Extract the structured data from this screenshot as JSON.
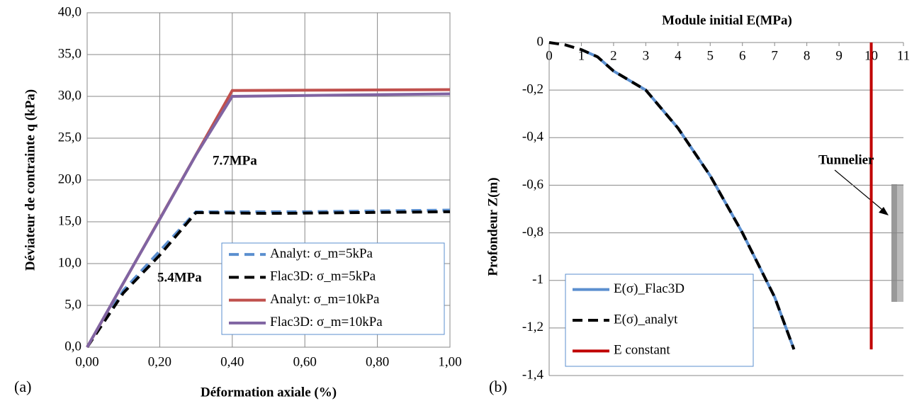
{
  "chart_data": [
    {
      "type": "line",
      "panel_label": "(a)",
      "x_label": "Déformation axiale (%)",
      "y_label": "Déviateur de contrainte q (kPa)",
      "xlim": [
        0,
        1
      ],
      "ylim": [
        0,
        40
      ],
      "grid": "both",
      "xaxis_position": "bottom",
      "legend": "bottom-right",
      "xticks": [
        {
          "value": 0,
          "label": "0,00"
        },
        {
          "value": 0.2,
          "label": "0,20"
        },
        {
          "value": 0.4,
          "label": "0,40"
        },
        {
          "value": 0.6,
          "label": "0,60"
        },
        {
          "value": 0.8,
          "label": "0,80"
        },
        {
          "value": 1,
          "label": "1,00"
        }
      ],
      "yticks": [
        {
          "value": 0,
          "label": "0,0"
        },
        {
          "value": 5,
          "label": "5,0"
        },
        {
          "value": 10,
          "label": "10,0"
        },
        {
          "value": 15,
          "label": "15,0"
        },
        {
          "value": 20,
          "label": "20,0"
        },
        {
          "value": 25,
          "label": "25,0"
        },
        {
          "value": 30,
          "label": "30,0"
        },
        {
          "value": 35,
          "label": "35,0"
        },
        {
          "value": 40,
          "label": "40,0"
        }
      ],
      "series": [
        {
          "name": "Analyt: σ_m=5kPa",
          "color": "#5b8fcf",
          "dash": true,
          "x": [
            0,
            0.1,
            0.3,
            0.6,
            1
          ],
          "values": [
            0,
            6.8,
            16.2,
            16.2,
            16.4
          ]
        },
        {
          "name": "Flac3D: σ_m=5kPa",
          "color": "#000000",
          "dash": true,
          "x": [
            0,
            0.1,
            0.2,
            0.3,
            0.5,
            1
          ],
          "values": [
            0,
            6.5,
            11,
            16.1,
            16,
            16.2
          ]
        },
        {
          "name": "Analyt: σ_m=10kPa",
          "color": "#c0504d",
          "dash": false,
          "x": [
            0,
            0.4,
            1
          ],
          "values": [
            0,
            30.7,
            30.8
          ]
        },
        {
          "name": "Flac3D: σ_m=10kPa",
          "color": "#8064a2",
          "dash": false,
          "x": [
            0,
            0.1,
            0.2,
            0.3,
            0.4,
            1
          ],
          "values": [
            0,
            7.7,
            15.3,
            23,
            30,
            30.3
          ]
        }
      ],
      "annotations": [
        "7.7MPa",
        "5.4MPa"
      ]
    },
    {
      "type": "line",
      "panel_label": "(b)",
      "title": "Module initial E(MPa)",
      "y_label": "Profondeur  Z(m)",
      "xlim": [
        0,
        11
      ],
      "ylim": [
        -1.4,
        0
      ],
      "grid": "y",
      "xaxis_position": "top",
      "legend": "bottom-left",
      "xticks": [
        0,
        1,
        2,
        3,
        4,
        5,
        6,
        7,
        8,
        9,
        10,
        11
      ],
      "yticks": [
        {
          "value": 0,
          "label": "0"
        },
        {
          "value": -0.2,
          "label": "-0,2"
        },
        {
          "value": -0.4,
          "label": "-0,4"
        },
        {
          "value": -0.6,
          "label": "-0,6"
        },
        {
          "value": -0.8,
          "label": "-0,8"
        },
        {
          "value": -1,
          "label": "-1"
        },
        {
          "value": -1.2,
          "label": "-1,2"
        },
        {
          "value": -1.4,
          "label": "-1,4"
        }
      ],
      "series": [
        {
          "name": "E(σ)_Flac3D",
          "color": "#5b8fcf",
          "dash": false,
          "x": [
            1,
            1.5,
            2,
            3,
            4,
            5,
            6,
            7,
            7.6
          ],
          "values": [
            -0.03,
            -0.06,
            -0.12,
            -0.2,
            -0.36,
            -0.56,
            -0.8,
            -1.07,
            -1.29
          ]
        },
        {
          "name": "E(σ)_analyt",
          "color": "#000000",
          "dash": true,
          "x": [
            0,
            0.5,
            1,
            1.5,
            2,
            3,
            4,
            5,
            6,
            7,
            7.6
          ],
          "values": [
            0,
            -0.01,
            -0.03,
            -0.06,
            -0.12,
            -0.2,
            -0.36,
            -0.56,
            -0.8,
            -1.07,
            -1.29
          ]
        },
        {
          "name": "E constant",
          "color": "#c00000",
          "dash": false,
          "x": [
            10,
            10
          ],
          "values": [
            0,
            -1.29
          ]
        }
      ],
      "annotations": [
        "Tunnelier"
      ]
    }
  ]
}
